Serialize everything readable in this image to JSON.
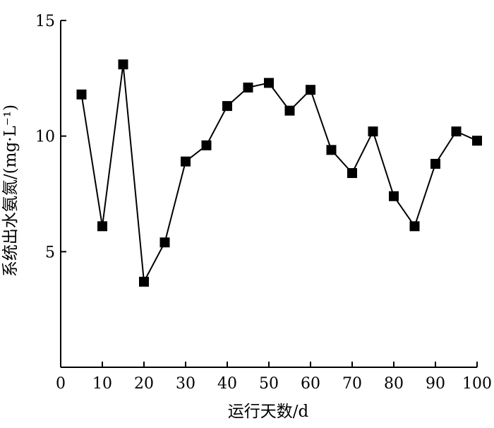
{
  "chart_data": {
    "type": "line",
    "title": "",
    "xlabel": "运行天数/d",
    "ylabel": "系统出水氨氮/(mg·L⁻¹)",
    "xlim": [
      0,
      100
    ],
    "ylim": [
      0,
      15
    ],
    "x_ticks": [
      "0",
      "10",
      "20",
      "30",
      "40",
      "50",
      "60",
      "70",
      "80",
      "90",
      "100"
    ],
    "y_ticks": [
      "5",
      "10",
      "15"
    ],
    "grid": false,
    "legend": "none",
    "marker": "square",
    "color": "#000000",
    "series": [
      {
        "x": [
          5,
          10,
          15,
          20,
          25,
          30,
          35,
          40,
          45,
          50,
          55,
          60,
          65,
          70,
          75,
          80,
          85,
          90,
          95,
          100
        ],
        "values": [
          11.8,
          6.1,
          13.1,
          3.7,
          5.4,
          8.9,
          9.6,
          11.3,
          12.1,
          12.3,
          11.1,
          12.0,
          9.4,
          8.4,
          10.2,
          7.4,
          6.1,
          8.8,
          10.2,
          9.8
        ]
      }
    ]
  }
}
